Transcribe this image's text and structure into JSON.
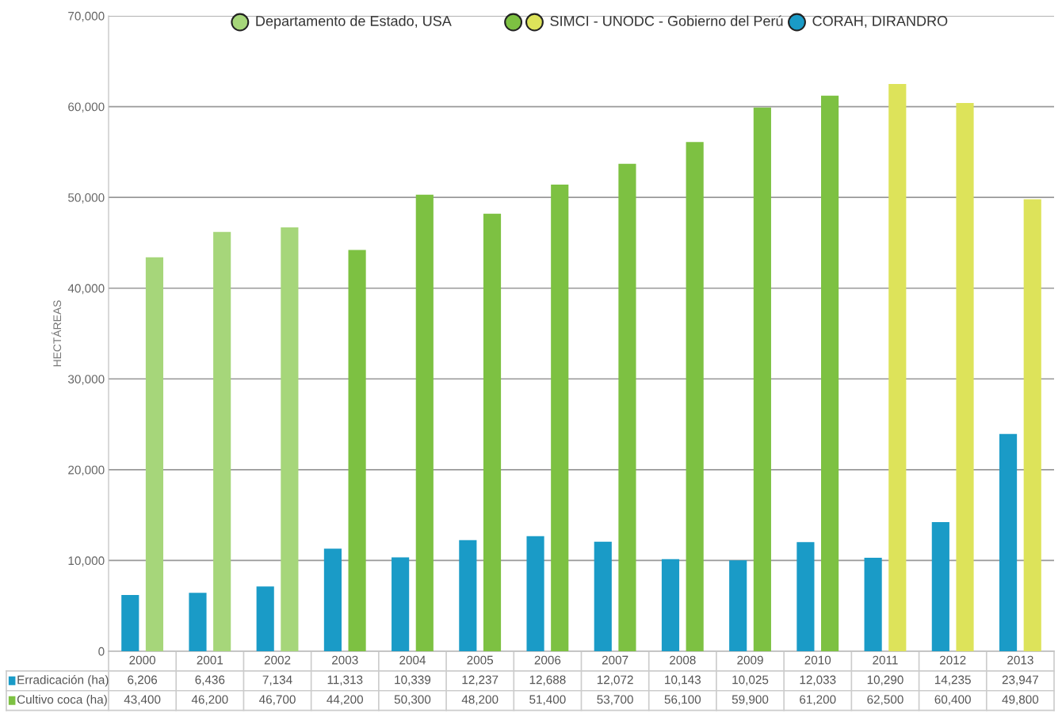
{
  "chart_data": {
    "type": "bar",
    "ylabel": "HECTÁREAS",
    "categories": [
      "2000",
      "2001",
      "2002",
      "2003",
      "2004",
      "2005",
      "2006",
      "2007",
      "2008",
      "2009",
      "2010",
      "2011",
      "2012",
      "2013"
    ],
    "series": [
      {
        "name": "Erradicación (ha)",
        "color": "#1a9bc7",
        "values": [
          6206,
          6436,
          7134,
          11313,
          10339,
          12237,
          12688,
          12072,
          10143,
          10025,
          12033,
          10290,
          14235,
          23947
        ],
        "value_labels": [
          "6,206",
          "6,436",
          "7,134",
          "11,313",
          "10,339",
          "12,237",
          "12,688",
          "12,072",
          "10,143",
          "10,025",
          "12,033",
          "10,290",
          "14,235",
          "23,947"
        ]
      },
      {
        "name": "Cultivo coca (ha)",
        "color": "#7dc142",
        "colors": [
          "#a6d67a",
          "#a6d67a",
          "#a6d67a",
          "#7dc142",
          "#7dc142",
          "#7dc142",
          "#7dc142",
          "#7dc142",
          "#7dc142",
          "#7dc142",
          "#7dc142",
          "#dde35a",
          "#dde35a",
          "#dde35a"
        ],
        "values": [
          43400,
          46200,
          46700,
          44200,
          50300,
          48200,
          51400,
          53700,
          56100,
          59900,
          61200,
          62500,
          60400,
          49800
        ],
        "value_labels": [
          "43,400",
          "46,200",
          "46,700",
          "44,200",
          "50,300",
          "48,200",
          "51,400",
          "53,700",
          "56,100",
          "59,900",
          "61,200",
          "62,500",
          "60,400",
          "49,800"
        ]
      }
    ],
    "ylim": [
      0,
      70000
    ],
    "yticks": [
      0,
      {
        "value": 10000,
        "label": "10,000"
      },
      {
        "value": 20000,
        "label": "20,000"
      },
      {
        "value": 30000,
        "label": "30,000"
      },
      {
        "value": 40000,
        "label": "40,000"
      },
      {
        "value": 50000,
        "label": "50,000"
      },
      {
        "value": 60000,
        "label": "60,000"
      },
      {
        "value": 70000,
        "label": "70,000"
      }
    ],
    "grid": "y",
    "legend": "bottom left",
    "annotations": [
      "Departamento de Estado, USA",
      "SIMCI - UNODC - Gobierno del Perú",
      "CORAH, DIRANDRO"
    ]
  }
}
